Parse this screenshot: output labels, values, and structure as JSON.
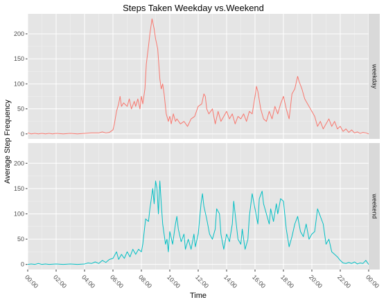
{
  "chart_data": {
    "type": "line",
    "title": "Steps Taken Weekday vs.Weekend",
    "xlabel": "Time",
    "ylabel": "Average Step Frequency",
    "x_unit": "hours",
    "xlim": [
      0,
      24
    ],
    "ylim": [
      -10,
      240
    ],
    "y_ticks": [
      0,
      50,
      100,
      150,
      200
    ],
    "x_ticks": [
      {
        "value": 0,
        "label": "00:00"
      },
      {
        "value": 2,
        "label": "02:00"
      },
      {
        "value": 4,
        "label": "04:00"
      },
      {
        "value": 6,
        "label": "06:00"
      },
      {
        "value": 8,
        "label": "08:00"
      },
      {
        "value": 10,
        "label": "10:00"
      },
      {
        "value": 12,
        "label": "12:00"
      },
      {
        "value": 14,
        "label": "14:00"
      },
      {
        "value": 16,
        "label": "16:00"
      },
      {
        "value": 18,
        "label": "18:00"
      },
      {
        "value": 20,
        "label": "20:00"
      },
      {
        "value": 22,
        "label": "22:00"
      },
      {
        "value": 24,
        "label": "00:00"
      }
    ],
    "grid": true,
    "facets": [
      {
        "strip_label": "weekday",
        "color": "#F8766D",
        "points": [
          [
            0,
            2
          ],
          [
            0.25,
            0
          ],
          [
            0.5,
            1
          ],
          [
            0.75,
            0
          ],
          [
            1,
            1
          ],
          [
            1.25,
            0
          ],
          [
            1.5,
            1
          ],
          [
            1.75,
            0
          ],
          [
            2,
            1
          ],
          [
            2.5,
            0
          ],
          [
            3,
            1
          ],
          [
            3.5,
            0
          ],
          [
            4,
            1
          ],
          [
            4.5,
            2
          ],
          [
            5,
            2
          ],
          [
            5.25,
            4
          ],
          [
            5.5,
            2
          ],
          [
            5.75,
            3
          ],
          [
            6,
            8
          ],
          [
            6.1,
            20
          ],
          [
            6.25,
            45
          ],
          [
            6.4,
            60
          ],
          [
            6.5,
            75
          ],
          [
            6.6,
            55
          ],
          [
            6.75,
            62
          ],
          [
            7,
            55
          ],
          [
            7.15,
            70
          ],
          [
            7.3,
            50
          ],
          [
            7.5,
            65
          ],
          [
            7.6,
            55
          ],
          [
            7.75,
            70
          ],
          [
            7.9,
            50
          ],
          [
            8,
            75
          ],
          [
            8.1,
            60
          ],
          [
            8.25,
            90
          ],
          [
            8.35,
            140
          ],
          [
            8.5,
            175
          ],
          [
            8.6,
            200
          ],
          [
            8.75,
            230
          ],
          [
            8.9,
            210
          ],
          [
            9,
            190
          ],
          [
            9.15,
            170
          ],
          [
            9.3,
            110
          ],
          [
            9.4,
            90
          ],
          [
            9.5,
            100
          ],
          [
            9.6,
            80
          ],
          [
            9.75,
            40
          ],
          [
            9.9,
            25
          ],
          [
            10,
            35
          ],
          [
            10.1,
            20
          ],
          [
            10.25,
            40
          ],
          [
            10.4,
            25
          ],
          [
            10.5,
            30
          ],
          [
            10.75,
            20
          ],
          [
            11,
            25
          ],
          [
            11.25,
            15
          ],
          [
            11.5,
            30
          ],
          [
            11.75,
            35
          ],
          [
            12,
            55
          ],
          [
            12.25,
            60
          ],
          [
            12.4,
            80
          ],
          [
            12.5,
            75
          ],
          [
            12.6,
            50
          ],
          [
            12.75,
            40
          ],
          [
            13,
            50
          ],
          [
            13.2,
            20
          ],
          [
            13.4,
            45
          ],
          [
            13.6,
            25
          ],
          [
            13.8,
            35
          ],
          [
            14,
            45
          ],
          [
            14.2,
            30
          ],
          [
            14.4,
            40
          ],
          [
            14.6,
            20
          ],
          [
            14.8,
            35
          ],
          [
            15,
            30
          ],
          [
            15.2,
            40
          ],
          [
            15.4,
            25
          ],
          [
            15.6,
            45
          ],
          [
            15.8,
            40
          ],
          [
            16,
            75
          ],
          [
            16.1,
            95
          ],
          [
            16.2,
            85
          ],
          [
            16.4,
            50
          ],
          [
            16.6,
            30
          ],
          [
            16.8,
            25
          ],
          [
            17,
            45
          ],
          [
            17.2,
            30
          ],
          [
            17.4,
            55
          ],
          [
            17.6,
            40
          ],
          [
            17.8,
            60
          ],
          [
            18,
            75
          ],
          [
            18.2,
            50
          ],
          [
            18.4,
            30
          ],
          [
            18.6,
            80
          ],
          [
            18.8,
            90
          ],
          [
            19,
            115
          ],
          [
            19.1,
            105
          ],
          [
            19.3,
            90
          ],
          [
            19.5,
            70
          ],
          [
            19.7,
            60
          ],
          [
            19.9,
            50
          ],
          [
            20,
            45
          ],
          [
            20.2,
            35
          ],
          [
            20.4,
            15
          ],
          [
            20.6,
            25
          ],
          [
            20.8,
            10
          ],
          [
            21,
            20
          ],
          [
            21.2,
            30
          ],
          [
            21.4,
            15
          ],
          [
            21.6,
            25
          ],
          [
            21.8,
            10
          ],
          [
            22,
            15
          ],
          [
            22.2,
            5
          ],
          [
            22.4,
            10
          ],
          [
            22.6,
            3
          ],
          [
            22.8,
            8
          ],
          [
            23,
            2
          ],
          [
            23.2,
            4
          ],
          [
            23.4,
            1
          ],
          [
            23.6,
            3
          ],
          [
            23.8,
            2
          ],
          [
            24,
            0
          ]
        ]
      },
      {
        "strip_label": "weekend",
        "color": "#00BFC4",
        "points": [
          [
            0,
            0
          ],
          [
            0.25,
            1
          ],
          [
            0.5,
            0
          ],
          [
            0.75,
            2
          ],
          [
            1,
            0
          ],
          [
            1.25,
            1
          ],
          [
            1.5,
            0
          ],
          [
            2,
            1
          ],
          [
            2.5,
            0
          ],
          [
            3,
            1
          ],
          [
            3.5,
            0
          ],
          [
            4,
            1
          ],
          [
            4.25,
            3
          ],
          [
            4.5,
            2
          ],
          [
            4.75,
            5
          ],
          [
            5,
            2
          ],
          [
            5.25,
            8
          ],
          [
            5.5,
            4
          ],
          [
            5.75,
            10
          ],
          [
            6,
            12
          ],
          [
            6.25,
            25
          ],
          [
            6.4,
            10
          ],
          [
            6.6,
            20
          ],
          [
            6.8,
            12
          ],
          [
            7,
            25
          ],
          [
            7.2,
            15
          ],
          [
            7.4,
            30
          ],
          [
            7.6,
            20
          ],
          [
            7.8,
            30
          ],
          [
            8,
            25
          ],
          [
            8.1,
            40
          ],
          [
            8.2,
            65
          ],
          [
            8.3,
            90
          ],
          [
            8.5,
            85
          ],
          [
            8.6,
            110
          ],
          [
            8.7,
            130
          ],
          [
            8.8,
            150
          ],
          [
            8.9,
            120
          ],
          [
            9,
            165
          ],
          [
            9.1,
            150
          ],
          [
            9.2,
            100
          ],
          [
            9.3,
            165
          ],
          [
            9.4,
            120
          ],
          [
            9.5,
            80
          ],
          [
            9.6,
            60
          ],
          [
            9.7,
            40
          ],
          [
            9.8,
            50
          ],
          [
            9.9,
            25
          ],
          [
            10,
            65
          ],
          [
            10.2,
            40
          ],
          [
            10.4,
            80
          ],
          [
            10.5,
            95
          ],
          [
            10.6,
            70
          ],
          [
            10.8,
            45
          ],
          [
            11,
            60
          ],
          [
            11.1,
            30
          ],
          [
            11.3,
            50
          ],
          [
            11.5,
            30
          ],
          [
            11.7,
            60
          ],
          [
            11.8,
            35
          ],
          [
            12,
            60
          ],
          [
            12.1,
            90
          ],
          [
            12.2,
            120
          ],
          [
            12.3,
            140
          ],
          [
            12.4,
            115
          ],
          [
            12.6,
            90
          ],
          [
            12.8,
            60
          ],
          [
            13,
            50
          ],
          [
            13.2,
            70
          ],
          [
            13.3,
            110
          ],
          [
            13.5,
            100
          ],
          [
            13.6,
            60
          ],
          [
            13.8,
            30
          ],
          [
            14,
            60
          ],
          [
            14.2,
            45
          ],
          [
            14.4,
            80
          ],
          [
            14.5,
            125
          ],
          [
            14.6,
            100
          ],
          [
            14.8,
            50
          ],
          [
            15,
            40
          ],
          [
            15.1,
            70
          ],
          [
            15.3,
            30
          ],
          [
            15.5,
            50
          ],
          [
            15.6,
            95
          ],
          [
            15.8,
            140
          ],
          [
            16,
            110
          ],
          [
            16.2,
            80
          ],
          [
            16.3,
            130
          ],
          [
            16.5,
            145
          ],
          [
            16.6,
            120
          ],
          [
            16.8,
            100
          ],
          [
            17,
            80
          ],
          [
            17.1,
            110
          ],
          [
            17.3,
            85
          ],
          [
            17.5,
            120
          ],
          [
            17.6,
            100
          ],
          [
            17.8,
            130
          ],
          [
            18,
            125
          ],
          [
            18.2,
            70
          ],
          [
            18.4,
            35
          ],
          [
            18.6,
            55
          ],
          [
            18.8,
            80
          ],
          [
            19,
            95
          ],
          [
            19.2,
            65
          ],
          [
            19.4,
            55
          ],
          [
            19.6,
            80
          ],
          [
            19.8,
            50
          ],
          [
            20,
            60
          ],
          [
            20.2,
            65
          ],
          [
            20.4,
            110
          ],
          [
            20.6,
            95
          ],
          [
            20.8,
            80
          ],
          [
            21,
            40
          ],
          [
            21.2,
            50
          ],
          [
            21.4,
            25
          ],
          [
            21.6,
            20
          ],
          [
            21.8,
            15
          ],
          [
            22,
            8
          ],
          [
            22.2,
            3
          ],
          [
            22.4,
            2
          ],
          [
            22.6,
            4
          ],
          [
            22.8,
            2
          ],
          [
            23,
            5
          ],
          [
            23.2,
            1
          ],
          [
            23.4,
            3
          ],
          [
            23.6,
            2
          ],
          [
            23.8,
            8
          ],
          [
            24,
            0
          ]
        ]
      }
    ]
  }
}
